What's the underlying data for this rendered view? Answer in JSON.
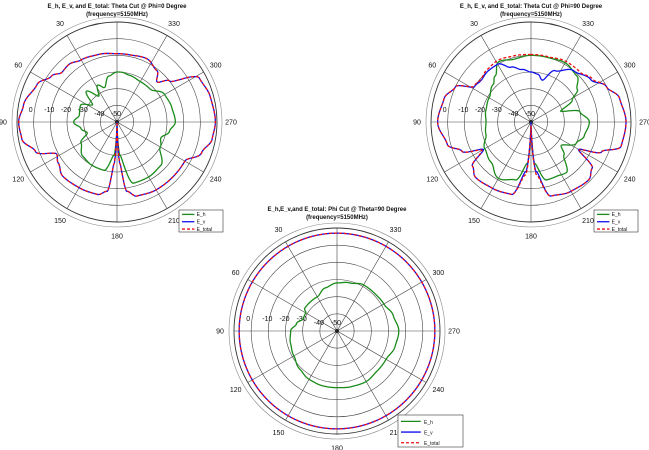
{
  "chart_data": [
    {
      "type": "polar-line",
      "title": "E_h, E_v, and E_total: Theta Cut @ Phi=0 Degree",
      "subtitle": "(frequency=5150MHz)",
      "angle_direction": "counterclockwise, 0 at top",
      "angle_ticks": [
        "30",
        "60",
        "90",
        "120",
        "150",
        "180",
        "210",
        "240",
        "270",
        "300",
        "330"
      ],
      "radial_ticks": [
        "0",
        "-10",
        "-20",
        "-30",
        "-40",
        "-50"
      ],
      "rlim": [
        -50,
        10
      ],
      "grid": true,
      "legend": "bottom-right",
      "series": [
        {
          "name": "E_h",
          "color": "#1a8a1a",
          "style": "solid",
          "points": [
            [
              0,
              -20
            ],
            [
              10,
              -22
            ],
            [
              20,
              -28
            ],
            [
              28,
              -25
            ],
            [
              35,
              -31
            ],
            [
              45,
              -24
            ],
            [
              55,
              -32
            ],
            [
              65,
              -26
            ],
            [
              80,
              -27
            ],
            [
              90,
              -24
            ],
            [
              100,
              -28
            ],
            [
              110,
              -31
            ],
            [
              120,
              -25
            ],
            [
              135,
              -21
            ],
            [
              150,
              -20
            ],
            [
              165,
              -20
            ],
            [
              175,
              -30
            ],
            [
              180,
              -50
            ],
            [
              185,
              -30
            ],
            [
              195,
              -12
            ],
            [
              210,
              -12
            ],
            [
              225,
              -13
            ],
            [
              240,
              -20
            ],
            [
              250,
              -22
            ],
            [
              260,
              -18
            ],
            [
              270,
              -15
            ],
            [
              285,
              -16
            ],
            [
              300,
              -17
            ],
            [
              315,
              -22
            ],
            [
              330,
              -22
            ],
            [
              345,
              -21
            ],
            [
              355,
              -20
            ]
          ]
        },
        {
          "name": "E_v",
          "color": "#1010ee",
          "style": "solid",
          "points": [
            [
              0,
              -9
            ],
            [
              15,
              -8
            ],
            [
              30,
              -7
            ],
            [
              40,
              -5
            ],
            [
              48,
              -5.5
            ],
            [
              55,
              -2
            ],
            [
              65,
              3
            ],
            [
              80,
              7
            ],
            [
              90,
              9
            ],
            [
              100,
              8
            ],
            [
              110,
              2
            ],
            [
              118,
              -9
            ],
            [
              125,
              -7
            ],
            [
              135,
              -4
            ],
            [
              150,
              -4.5
            ],
            [
              165,
              -5
            ],
            [
              172,
              -8
            ],
            [
              176,
              -25
            ],
            [
              180,
              -50
            ],
            [
              184,
              -25
            ],
            [
              188,
              -8
            ],
            [
              195,
              -4
            ],
            [
              210,
              -3
            ],
            [
              225,
              -3
            ],
            [
              240,
              -3
            ],
            [
              250,
              4
            ],
            [
              260,
              8
            ],
            [
              270,
              9
            ],
            [
              285,
              8
            ],
            [
              298,
              6
            ],
            [
              308,
              -10
            ],
            [
              315,
              -16
            ],
            [
              322,
              -11
            ],
            [
              335,
              -8
            ],
            [
              350,
              -9
            ]
          ]
        },
        {
          "name": "E_total",
          "color": "#ee1010",
          "style": "dashed",
          "points": [
            [
              0,
              -9
            ],
            [
              15,
              -8
            ],
            [
              30,
              -7
            ],
            [
              40,
              -5
            ],
            [
              48,
              -5.5
            ],
            [
              55,
              -2
            ],
            [
              65,
              3
            ],
            [
              80,
              7
            ],
            [
              90,
              9
            ],
            [
              100,
              8
            ],
            [
              110,
              2
            ],
            [
              118,
              -9
            ],
            [
              125,
              -7
            ],
            [
              135,
              -4
            ],
            [
              150,
              -4.5
            ],
            [
              165,
              -5
            ],
            [
              172,
              -8
            ],
            [
              176,
              -25
            ],
            [
              180,
              -50
            ],
            [
              184,
              -25
            ],
            [
              188,
              -8
            ],
            [
              195,
              -4
            ],
            [
              210,
              -3
            ],
            [
              225,
              -3
            ],
            [
              240,
              -3
            ],
            [
              250,
              4
            ],
            [
              260,
              8
            ],
            [
              270,
              9
            ],
            [
              285,
              8
            ],
            [
              298,
              6
            ],
            [
              308,
              -10
            ],
            [
              315,
              -16
            ],
            [
              322,
              -11
            ],
            [
              335,
              -8
            ],
            [
              350,
              -9
            ]
          ]
        }
      ]
    },
    {
      "type": "polar-line",
      "title": "E_h, E_v, and E_total: Theta Cut @ Phi=90 Degree",
      "subtitle": "(frequency=5150MHz)",
      "angle_direction": "counterclockwise, 0 at top",
      "angle_ticks": [
        "30",
        "60",
        "90",
        "120",
        "150",
        "180",
        "210",
        "240",
        "270",
        "300",
        "330"
      ],
      "radial_ticks": [
        "0",
        "-10",
        "-20",
        "-30",
        "-40",
        "-50"
      ],
      "rlim": [
        -50,
        10
      ],
      "grid": true,
      "legend": "bottom-right",
      "series": [
        {
          "name": "E_h",
          "color": "#1a8a1a",
          "style": "solid",
          "points": [
            [
              0,
              -10
            ],
            [
              15,
              -11
            ],
            [
              28,
              -9
            ],
            [
              38,
              -15
            ],
            [
              45,
              -18
            ],
            [
              60,
              -21
            ],
            [
              75,
              -22
            ],
            [
              90,
              -23
            ],
            [
              105,
              -22
            ],
            [
              120,
              -18
            ],
            [
              135,
              -16
            ],
            [
              150,
              -11
            ],
            [
              165,
              -14
            ],
            [
              175,
              -25
            ],
            [
              180,
              -50
            ],
            [
              185,
              -25
            ],
            [
              195,
              -14
            ],
            [
              205,
              -14
            ],
            [
              215,
              -13
            ],
            [
              225,
              -22
            ],
            [
              232,
              -27
            ],
            [
              245,
              -20
            ],
            [
              255,
              -17
            ],
            [
              270,
              -15
            ],
            [
              282,
              -20
            ],
            [
              290,
              -31
            ],
            [
              298,
              -22
            ],
            [
              305,
              -16
            ],
            [
              315,
              -11
            ],
            [
              330,
              -9
            ],
            [
              345,
              -10
            ]
          ]
        },
        {
          "name": "E_v",
          "color": "#1010ee",
          "style": "solid",
          "points": [
            [
              0,
              -20
            ],
            [
              10,
              -18
            ],
            [
              20,
              -15
            ],
            [
              30,
              -10
            ],
            [
              40,
              -10
            ],
            [
              50,
              -11
            ],
            [
              58,
              -10
            ],
            [
              65,
              0
            ],
            [
              75,
              4
            ],
            [
              90,
              6
            ],
            [
              105,
              2
            ],
            [
              113,
              -5
            ],
            [
              120,
              -17
            ],
            [
              127,
              -6
            ],
            [
              135,
              -3
            ],
            [
              150,
              -4
            ],
            [
              165,
              -5
            ],
            [
              174,
              -20
            ],
            [
              180,
              -50
            ],
            [
              186,
              -20
            ],
            [
              195,
              -4
            ],
            [
              210,
              -2
            ],
            [
              225,
              -1
            ],
            [
              233,
              -4
            ],
            [
              240,
              -17
            ],
            [
              247,
              -4
            ],
            [
              255,
              6
            ],
            [
              270,
              7
            ],
            [
              285,
              5
            ],
            [
              295,
              0
            ],
            [
              305,
              -6
            ],
            [
              320,
              -10
            ],
            [
              335,
              -16
            ],
            [
              345,
              -24
            ],
            [
              352,
              -21
            ]
          ]
        },
        {
          "name": "E_total",
          "color": "#ee1010",
          "style": "dashed",
          "points": [
            [
              0,
              -9.5
            ],
            [
              15,
              -9
            ],
            [
              28,
              -8
            ],
            [
              40,
              -9
            ],
            [
              50,
              -10.5
            ],
            [
              58,
              -9.5
            ],
            [
              65,
              0
            ],
            [
              75,
              4
            ],
            [
              90,
              6
            ],
            [
              105,
              2
            ],
            [
              113,
              -5
            ],
            [
              120,
              -16
            ],
            [
              127,
              -6
            ],
            [
              135,
              -3
            ],
            [
              150,
              -4
            ],
            [
              165,
              -5
            ],
            [
              174,
              -18
            ],
            [
              180,
              -48
            ],
            [
              186,
              -18
            ],
            [
              195,
              -4
            ],
            [
              210,
              -2
            ],
            [
              225,
              -1
            ],
            [
              233,
              -4
            ],
            [
              240,
              -16.5
            ],
            [
              247,
              -4
            ],
            [
              255,
              6
            ],
            [
              270,
              7
            ],
            [
              285,
              5
            ],
            [
              295,
              0
            ],
            [
              305,
              -5
            ],
            [
              315,
              -8
            ],
            [
              330,
              -8
            ],
            [
              345,
              -9.5
            ]
          ]
        }
      ]
    },
    {
      "type": "polar-line",
      "title": "E_h,E_v,and E_total: Phi Cut @ Theta=90 Degree",
      "subtitle": "(frequency=5150MHz)",
      "angle_direction": "counterclockwise, 0 at top",
      "angle_ticks": [
        "30",
        "60",
        "90",
        "120",
        "150",
        "180",
        "210",
        "240",
        "270",
        "300",
        "330"
      ],
      "radial_ticks": [
        "0",
        "-10",
        "-20",
        "-30",
        "-40",
        "-50"
      ],
      "rlim": [
        -50,
        10
      ],
      "grid": true,
      "legend": "bottom-right",
      "series": [
        {
          "name": "E_h",
          "color": "#1a8a1a",
          "style": "solid",
          "points": [
            [
              0,
              -22
            ],
            [
              15,
              -24
            ],
            [
              30,
              -27
            ],
            [
              45,
              -27
            ],
            [
              55,
              -27
            ],
            [
              60,
              -29
            ],
            [
              70,
              -29
            ],
            [
              80,
              -26
            ],
            [
              90,
              -23
            ],
            [
              105,
              -22
            ],
            [
              120,
              -21
            ],
            [
              135,
              -19
            ],
            [
              150,
              -17.5
            ],
            [
              165,
              -17
            ],
            [
              180,
              -17
            ],
            [
              195,
              -16.5
            ],
            [
              210,
              -16
            ],
            [
              225,
              -17
            ],
            [
              240,
              -17
            ],
            [
              255,
              -15
            ],
            [
              270,
              -14
            ],
            [
              285,
              -16
            ],
            [
              300,
              -18.5
            ],
            [
              315,
              -19
            ],
            [
              330,
              -19
            ],
            [
              345,
              -21
            ]
          ]
        },
        {
          "name": "E_v",
          "color": "#1010ee",
          "style": "solid",
          "points": [
            [
              0,
              7
            ],
            [
              90,
              7
            ],
            [
              180,
              7
            ],
            [
              270,
              7
            ]
          ]
        },
        {
          "name": "E_total",
          "color": "#ee1010",
          "style": "dashed",
          "points": [
            [
              0,
              7
            ],
            [
              90,
              7
            ],
            [
              180,
              7
            ],
            [
              270,
              7
            ]
          ]
        }
      ]
    }
  ]
}
